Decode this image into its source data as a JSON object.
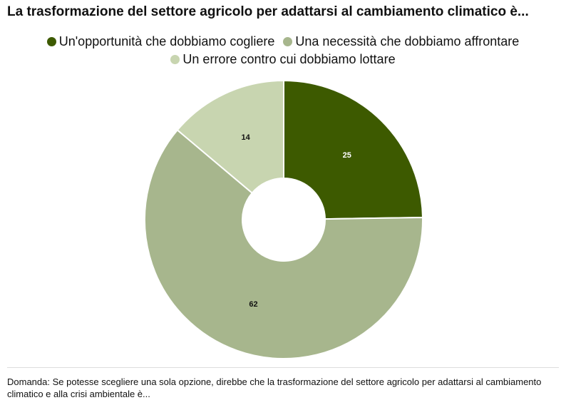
{
  "chart_data": {
    "type": "pie",
    "title": "La trasformazione del settore agricolo per adattarsi al cambiamento climatico è...",
    "categories": [
      "Un'opportunità che dobbiamo cogliere",
      "Una necessità che dobbiamo affrontare",
      "Un errore contro cui dobbiamo lottare"
    ],
    "values": [
      25,
      62,
      14
    ],
    "colors": [
      "#3d5a00",
      "#a7b68d",
      "#c8d5b0"
    ],
    "label_colors": [
      "#ffffff",
      "#111111",
      "#111111"
    ],
    "note": "Domanda: Se potesse scegliere una sola opzione, direbbe che la trasformazione del settore agricolo per adattarsi al cambiamento climatico e alla crisi ambientale è..."
  }
}
